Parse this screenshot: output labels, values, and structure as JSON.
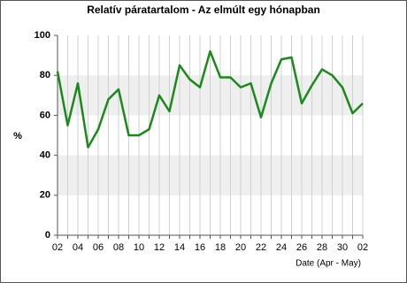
{
  "chart_data": {
    "type": "line",
    "title": "Relatív páratartalom - Az elmúlt egy hónapban",
    "y_label": "%",
    "x_label": "Date (Apr - May)",
    "categories": [
      "02",
      null,
      "04",
      null,
      "06",
      null,
      "08",
      null,
      "10",
      null,
      "12",
      null,
      "14",
      null,
      "16",
      null,
      "18",
      null,
      "20",
      null,
      "22",
      null,
      "24",
      null,
      "26",
      null,
      "28",
      null,
      "30",
      null,
      "02"
    ],
    "series": [
      {
        "name": "Relatív páratartalom",
        "color": "#1a8a1a",
        "values": [
          82,
          55,
          76,
          44,
          53,
          68,
          73,
          50,
          50,
          53,
          70,
          62,
          85,
          78,
          74,
          92,
          79,
          79,
          74,
          76,
          59,
          76,
          88,
          89,
          66,
          75,
          83,
          80,
          74,
          61,
          66
        ]
      }
    ],
    "ylim": [
      0,
      100
    ],
    "yticks": [
      0,
      20,
      40,
      60,
      80,
      100
    ],
    "grid": true,
    "alternate_bands": true
  }
}
